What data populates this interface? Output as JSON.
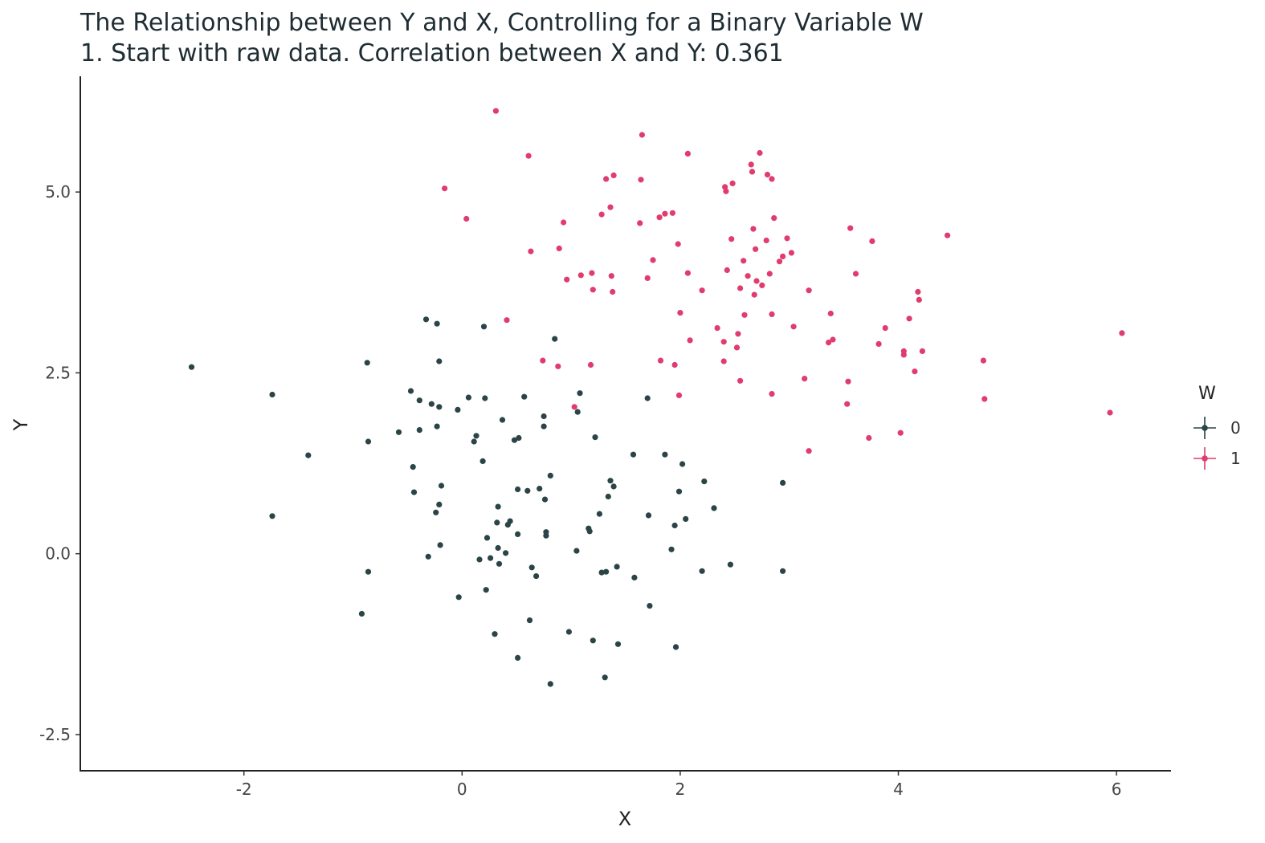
{
  "chart_data": {
    "type": "scatter",
    "title": "The Relationship between Y and X, Controlling for a Binary Variable W",
    "subtitle": "1. Start with raw data. Correlation between X and Y: 0.361",
    "xlabel": "X",
    "ylabel": "Y",
    "xlim": [
      -3.5,
      6.5
    ],
    "ylim": [
      -3.0,
      6.6
    ],
    "x_ticks": [
      -2,
      0,
      2,
      4,
      6
    ],
    "x_tick_labels": [
      "-2",
      "0",
      "2",
      "4",
      "6"
    ],
    "y_ticks": [
      -2.5,
      0.0,
      2.5,
      5.0
    ],
    "y_tick_labels": [
      "-2.5",
      "0.0",
      "2.5",
      "5.0"
    ],
    "grid": false,
    "legend": {
      "title": "W",
      "placement": "right"
    },
    "series": [
      {
        "name": "0",
        "color": "#2b4447",
        "points": [
          [
            -2.48,
            2.58
          ],
          [
            -1.74,
            2.2
          ],
          [
            -1.74,
            0.52
          ],
          [
            -1.41,
            1.36
          ],
          [
            -0.92,
            -0.83
          ],
          [
            -0.87,
            2.64
          ],
          [
            -0.86,
            1.55
          ],
          [
            -0.86,
            -0.25
          ],
          [
            -0.58,
            1.68
          ],
          [
            -0.47,
            2.25
          ],
          [
            -0.45,
            1.2
          ],
          [
            -0.44,
            0.85
          ],
          [
            -0.39,
            2.12
          ],
          [
            -0.39,
            1.71
          ],
          [
            -0.33,
            3.24
          ],
          [
            -0.31,
            -0.04
          ],
          [
            -0.28,
            2.07
          ],
          [
            -0.24,
            0.57
          ],
          [
            -0.23,
            3.18
          ],
          [
            -0.23,
            1.76
          ],
          [
            -0.21,
            2.66
          ],
          [
            -0.21,
            2.03
          ],
          [
            -0.21,
            0.68
          ],
          [
            -0.2,
            0.12
          ],
          [
            -0.19,
            0.94
          ],
          [
            -0.04,
            1.99
          ],
          [
            -0.03,
            -0.6
          ],
          [
            0.06,
            2.16
          ],
          [
            0.11,
            1.55
          ],
          [
            0.13,
            1.63
          ],
          [
            0.16,
            -0.08
          ],
          [
            0.19,
            1.28
          ],
          [
            0.2,
            3.14
          ],
          [
            0.21,
            2.15
          ],
          [
            0.22,
            -0.5
          ],
          [
            0.23,
            0.22
          ],
          [
            0.26,
            -0.06
          ],
          [
            0.3,
            -1.11
          ],
          [
            0.32,
            0.43
          ],
          [
            0.33,
            0.65
          ],
          [
            0.33,
            0.08
          ],
          [
            0.34,
            -0.14
          ],
          [
            0.37,
            1.85
          ],
          [
            0.4,
            0.01
          ],
          [
            0.42,
            0.4
          ],
          [
            0.44,
            0.45
          ],
          [
            0.48,
            1.57
          ],
          [
            0.51,
            0.27
          ],
          [
            0.51,
            0.89
          ],
          [
            0.51,
            -1.44
          ],
          [
            0.52,
            1.6
          ],
          [
            0.57,
            2.17
          ],
          [
            0.6,
            0.87
          ],
          [
            0.62,
            -0.92
          ],
          [
            0.64,
            -0.19
          ],
          [
            0.68,
            -0.31
          ],
          [
            0.71,
            0.9
          ],
          [
            0.75,
            1.9
          ],
          [
            0.75,
            1.76
          ],
          [
            0.76,
            0.75
          ],
          [
            0.77,
            0.3
          ],
          [
            0.77,
            0.25
          ],
          [
            0.81,
            1.08
          ],
          [
            0.81,
            -1.8
          ],
          [
            0.85,
            2.97
          ],
          [
            0.98,
            -1.08
          ],
          [
            1.05,
            0.04
          ],
          [
            1.06,
            1.96
          ],
          [
            1.08,
            2.22
          ],
          [
            1.16,
            0.35
          ],
          [
            1.17,
            0.31
          ],
          [
            1.2,
            -1.2
          ],
          [
            1.22,
            1.61
          ],
          [
            1.26,
            0.55
          ],
          [
            1.28,
            -0.26
          ],
          [
            1.31,
            -1.71
          ],
          [
            1.32,
            -0.25
          ],
          [
            1.34,
            0.79
          ],
          [
            1.36,
            1.01
          ],
          [
            1.39,
            0.93
          ],
          [
            1.42,
            -0.18
          ],
          [
            1.43,
            -1.25
          ],
          [
            1.57,
            1.37
          ],
          [
            1.58,
            -0.33
          ],
          [
            1.7,
            2.15
          ],
          [
            1.71,
            0.53
          ],
          [
            1.72,
            -0.72
          ],
          [
            1.86,
            1.37
          ],
          [
            1.92,
            0.06
          ],
          [
            1.95,
            0.39
          ],
          [
            1.96,
            -1.29
          ],
          [
            1.99,
            0.86
          ],
          [
            2.02,
            1.24
          ],
          [
            2.05,
            0.48
          ],
          [
            2.2,
            -0.24
          ],
          [
            2.22,
            1.0
          ],
          [
            2.31,
            0.63
          ],
          [
            2.46,
            -0.15
          ],
          [
            2.94,
            0.98
          ],
          [
            2.94,
            -0.24
          ]
        ]
      },
      {
        "name": "1",
        "color": "#e03c6e",
        "points": [
          [
            -0.16,
            5.05
          ],
          [
            0.04,
            4.63
          ],
          [
            0.31,
            6.12
          ],
          [
            0.41,
            3.23
          ],
          [
            0.61,
            5.5
          ],
          [
            0.63,
            4.18
          ],
          [
            0.74,
            2.67
          ],
          [
            0.88,
            2.59
          ],
          [
            0.89,
            4.22
          ],
          [
            0.93,
            4.58
          ],
          [
            0.96,
            3.79
          ],
          [
            1.03,
            2.03
          ],
          [
            1.09,
            3.85
          ],
          [
            1.18,
            2.61
          ],
          [
            1.19,
            3.88
          ],
          [
            1.2,
            3.65
          ],
          [
            1.28,
            4.69
          ],
          [
            1.32,
            5.18
          ],
          [
            1.36,
            4.79
          ],
          [
            1.37,
            3.84
          ],
          [
            1.38,
            3.62
          ],
          [
            1.39,
            5.23
          ],
          [
            1.63,
            4.57
          ],
          [
            1.64,
            5.17
          ],
          [
            1.65,
            5.79
          ],
          [
            1.7,
            3.81
          ],
          [
            1.75,
            4.06
          ],
          [
            1.81,
            4.65
          ],
          [
            1.82,
            2.67
          ],
          [
            1.86,
            4.7
          ],
          [
            1.93,
            4.71
          ],
          [
            1.95,
            2.61
          ],
          [
            1.98,
            4.28
          ],
          [
            1.99,
            2.19
          ],
          [
            2.0,
            3.33
          ],
          [
            2.07,
            3.88
          ],
          [
            2.07,
            5.53
          ],
          [
            2.09,
            2.95
          ],
          [
            2.2,
            3.64
          ],
          [
            2.34,
            3.12
          ],
          [
            2.4,
            2.66
          ],
          [
            2.4,
            2.93
          ],
          [
            2.41,
            5.07
          ],
          [
            2.42,
            5.01
          ],
          [
            2.43,
            3.92
          ],
          [
            2.47,
            4.35
          ],
          [
            2.48,
            5.12
          ],
          [
            2.52,
            2.85
          ],
          [
            2.53,
            3.04
          ],
          [
            2.55,
            2.39
          ],
          [
            2.55,
            3.67
          ],
          [
            2.58,
            4.05
          ],
          [
            2.59,
            3.3
          ],
          [
            2.62,
            3.84
          ],
          [
            2.65,
            5.38
          ],
          [
            2.66,
            5.28
          ],
          [
            2.67,
            4.49
          ],
          [
            2.68,
            3.58
          ],
          [
            2.69,
            4.21
          ],
          [
            2.7,
            3.77
          ],
          [
            2.73,
            5.54
          ],
          [
            2.75,
            3.71
          ],
          [
            2.79,
            4.33
          ],
          [
            2.8,
            5.24
          ],
          [
            2.82,
            3.87
          ],
          [
            2.84,
            5.18
          ],
          [
            2.84,
            3.31
          ],
          [
            2.84,
            2.21
          ],
          [
            2.86,
            4.64
          ],
          [
            2.91,
            4.04
          ],
          [
            2.94,
            4.11
          ],
          [
            2.98,
            4.36
          ],
          [
            3.02,
            4.16
          ],
          [
            3.04,
            3.14
          ],
          [
            3.14,
            2.42
          ],
          [
            3.18,
            3.64
          ],
          [
            3.18,
            1.42
          ],
          [
            3.36,
            2.92
          ],
          [
            3.38,
            3.32
          ],
          [
            3.4,
            2.96
          ],
          [
            3.53,
            2.07
          ],
          [
            3.54,
            2.38
          ],
          [
            3.56,
            4.5
          ],
          [
            3.61,
            3.87
          ],
          [
            3.73,
            1.6
          ],
          [
            3.76,
            4.32
          ],
          [
            3.82,
            2.9
          ],
          [
            3.88,
            3.12
          ],
          [
            4.02,
            1.67
          ],
          [
            4.05,
            2.8
          ],
          [
            4.05,
            2.75
          ],
          [
            4.1,
            3.25
          ],
          [
            4.15,
            2.52
          ],
          [
            4.18,
            3.62
          ],
          [
            4.19,
            3.51
          ],
          [
            4.22,
            2.8
          ],
          [
            4.45,
            4.4
          ],
          [
            4.78,
            2.67
          ],
          [
            4.79,
            2.14
          ],
          [
            5.94,
            1.95
          ],
          [
            6.05,
            3.05
          ]
        ]
      }
    ]
  }
}
